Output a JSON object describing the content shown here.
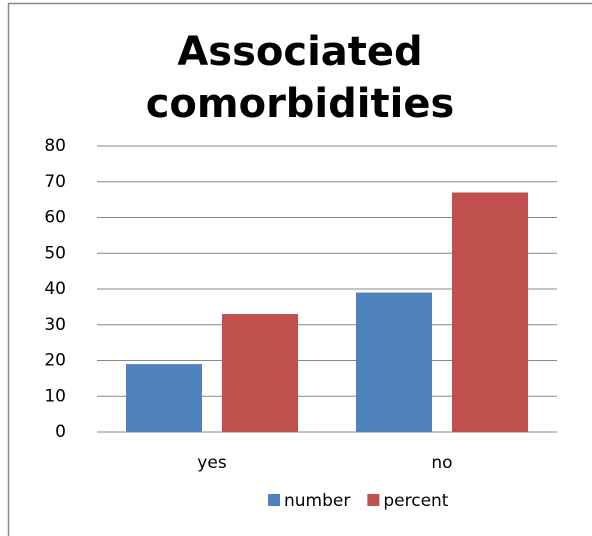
{
  "chart_data": {
    "type": "bar",
    "title": "Associated comorbidities",
    "categories": [
      "yes",
      "no"
    ],
    "series": [
      {
        "name": "number",
        "color": "#4f81bd",
        "values": [
          19,
          39
        ]
      },
      {
        "name": "percent",
        "color": "#c0504d",
        "values": [
          33,
          67
        ]
      }
    ],
    "ylim": [
      0,
      80
    ],
    "yticks": [
      0,
      10,
      20,
      30,
      40,
      50,
      60,
      70,
      80
    ],
    "grid": true,
    "legend": "bottom"
  }
}
